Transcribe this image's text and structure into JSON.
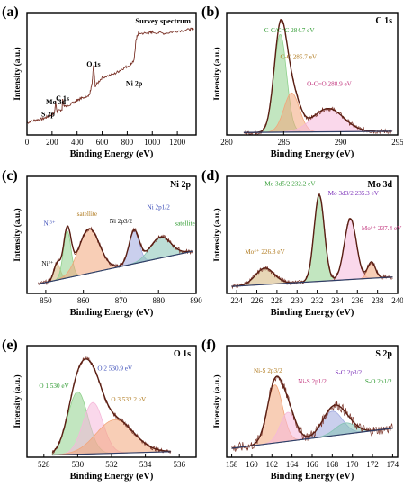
{
  "figure": {
    "background": "#ffffff",
    "colors": {
      "axis": "#000000",
      "raw": "#7a3328",
      "envelope": "#5a1f14",
      "background_line": "#2e3d66",
      "green": "#8fd18c",
      "orange": "#f2a67a",
      "pink": "#f5b8da",
      "tan": "#d4b57a",
      "blue": "#9fa7df",
      "teal": "#85c2b4",
      "red_arrow": "#d23a2a",
      "green_label": "#2e9a30",
      "orange_label": "#b07a1e",
      "pink_label": "#c0307a",
      "blue_label": "#3a4cb8",
      "purple_label": "#7a2fb8"
    }
  },
  "chart_data": [
    {
      "panel": "(a)",
      "type": "line",
      "title": "Survey spectrum",
      "xlabel": "Binding Energy (eV)",
      "ylabel": "Intensity (a.u.)",
      "xlim": [
        0,
        1350
      ],
      "ylim": [
        0,
        100
      ],
      "xticks": [
        "0",
        "200",
        "400",
        "600",
        "800",
        "1000",
        "1200"
      ],
      "series": [
        {
          "x": [
            0,
            60,
            120,
            170,
            220,
            228,
            240,
            280,
            284,
            300,
            380,
            400,
            440,
            500,
            520,
            531,
            545,
            600,
            700,
            760,
            820,
            855,
            870,
            890,
            960,
            1000,
            1100,
            1200,
            1300,
            1330
          ],
          "y": [
            10,
            12,
            13,
            15,
            18,
            27,
            19,
            21,
            29,
            23,
            27,
            29,
            30,
            33,
            42,
            57,
            40,
            47,
            50,
            54,
            57,
            61,
            78,
            83,
            83,
            84,
            83,
            85,
            86,
            87
          ]
        }
      ],
      "annotations": [
        {
          "text": "S 2p",
          "x": 168,
          "y": 15
        },
        {
          "text": "Mo 3d",
          "x": 230,
          "y": 25
        },
        {
          "text": "C 1s",
          "x": 284,
          "y": 28
        },
        {
          "text": "O 1s",
          "x": 531,
          "y": 56
        },
        {
          "text": "Ni 2p",
          "x": 855,
          "y": 40
        }
      ]
    },
    {
      "panel": "(b)",
      "type": "area",
      "title": "C 1s",
      "xlabel": "Binding Energy (eV)",
      "ylabel": "Intensity (a.u.)",
      "xlim": [
        280,
        295
      ],
      "ylim": [
        0,
        100
      ],
      "xticks": [
        "280",
        "285",
        "290",
        "295"
      ],
      "peaks": [
        {
          "label": "C-C/C=C 284.7 eV",
          "center": 284.7,
          "height": 80,
          "fwhm": 1.3,
          "color": "green"
        },
        {
          "label": "C-O 285.7 eV",
          "center": 285.7,
          "height": 32,
          "fwhm": 1.6,
          "color": "orange"
        },
        {
          "label": "O-C=O 288.9 eV",
          "center": 288.9,
          "height": 19,
          "fwhm": 3.2,
          "color": "pink"
        }
      ],
      "background": {
        "x": [
          281.5,
          294.5
        ],
        "y": [
          2,
          3
        ]
      },
      "raw_range": [
        281.5,
        294.5
      ],
      "annotations": [
        {
          "text": "C-C/C=C 284.7 eV",
          "x": 285.5,
          "y": 84,
          "color": "green_label"
        },
        {
          "text": "C-O 285.7 eV",
          "x": 286.3,
          "y": 62,
          "color": "orange_label"
        },
        {
          "text": "O-C=O 288.9 eV",
          "x": 289.0,
          "y": 40,
          "color": "pink_label"
        }
      ]
    },
    {
      "panel": "(c)",
      "type": "area",
      "title": "Ni 2p",
      "xlabel": "Binding Energy (eV)",
      "ylabel": "Intensity (a.u.)",
      "xlim": [
        845,
        890
      ],
      "ylim": [
        0,
        100
      ],
      "xticks": [
        "850",
        "860",
        "870",
        "880",
        "890"
      ],
      "peaks": [
        {
          "label": "Ni²⁺",
          "center": 853.0,
          "height": 14,
          "fwhm": 2.0,
          "color": "tan"
        },
        {
          "label": "Ni³⁺",
          "center": 855.7,
          "height": 40,
          "fwhm": 2.4,
          "color": "green"
        },
        {
          "label": "satellite",
          "center": 861.5,
          "height": 38,
          "fwhm": 6.5,
          "color": "orange"
        },
        {
          "label": "Ni 2p1/2",
          "center": 873.5,
          "height": 28,
          "fwhm": 3.2,
          "color": "blue"
        },
        {
          "label": "satellite",
          "center": 880.5,
          "height": 18,
          "fwhm": 6.5,
          "color": "teal"
        }
      ],
      "background": {
        "x": [
          848,
          889
        ],
        "y": [
          8,
          36
        ]
      },
      "raw_range": [
        848,
        889
      ],
      "annotations": [
        {
          "text": "Ni³⁺",
          "x": 851,
          "y": 58,
          "color": "blue_label"
        },
        {
          "text": "satellite",
          "x": 861,
          "y": 66,
          "color": "orange_label"
        },
        {
          "text": "Ni 2p3/2",
          "x": 870,
          "y": 60
        },
        {
          "text": "Ni 2p1/2",
          "x": 880,
          "y": 72,
          "color": "blue_label"
        },
        {
          "text": "satellite",
          "x": 887,
          "y": 58,
          "color": "green_label"
        },
        {
          "text": "Ni²⁺",
          "x": 850.5,
          "y": 24
        }
      ]
    },
    {
      "panel": "(d)",
      "type": "area",
      "title": "Mo 3d",
      "xlabel": "Binding Energy (eV)",
      "ylabel": "Intensity (a.u.)",
      "xlim": [
        223,
        240
      ],
      "ylim": [
        0,
        100
      ],
      "xticks": [
        "224",
        "226",
        "228",
        "230",
        "232",
        "234",
        "236",
        "238",
        "240"
      ],
      "peaks": [
        {
          "label": "Mo⁴⁺ 226.8 eV",
          "center": 226.8,
          "height": 14,
          "fwhm": 2.2,
          "color": "tan"
        },
        {
          "label": "Mo 3d5/2 232.2 eV",
          "center": 232.2,
          "height": 74,
          "fwhm": 1.2,
          "color": "green"
        },
        {
          "label": "Mo 3d3/2 235.3 eV",
          "center": 235.3,
          "height": 52,
          "fwhm": 1.4,
          "color": "pink"
        },
        {
          "label": "Mo⁶⁺ 237.4 eV",
          "center": 237.4,
          "height": 14,
          "fwhm": 0.9,
          "color": "orange"
        }
      ],
      "background": {
        "x": [
          223.5,
          239.5
        ],
        "y": [
          6,
          14
        ]
      },
      "raw_range": [
        223.5,
        239.5
      ],
      "annotations": [
        {
          "text": "Mo 3d5/2 232.2 eV",
          "x": 229.3,
          "y": 92,
          "color": "green_label"
        },
        {
          "text": "Mo 3d3/2 235.3 eV",
          "x": 235.6,
          "y": 84,
          "color": "purple_label"
        },
        {
          "text": "Mo⁶⁺ 237.4 eV",
          "x": 238.4,
          "y": 54,
          "color": "pink_label"
        },
        {
          "text": "Mo⁴⁺ 226.8 eV",
          "x": 226.8,
          "y": 34,
          "color": "orange_label"
        }
      ]
    },
    {
      "panel": "(e)",
      "type": "area",
      "title": "O 1s",
      "xlabel": "Binding Energy (eV)",
      "ylabel": "Intensity (a.u.)",
      "xlim": [
        527,
        537
      ],
      "ylim": [
        0,
        100
      ],
      "xticks": [
        "528",
        "530",
        "532",
        "534",
        "536"
      ],
      "peaks": [
        {
          "label": "O 1 530 eV",
          "center": 530.0,
          "height": 56,
          "fwhm": 1.4,
          "color": "green"
        },
        {
          "label": "O 2 530.9 eV",
          "center": 530.9,
          "height": 46,
          "fwhm": 1.4,
          "color": "pink"
        },
        {
          "label": "O 3 532.2 eV",
          "center": 532.2,
          "height": 30,
          "fwhm": 2.6,
          "color": "orange"
        }
      ],
      "background": {
        "x": [
          528.5,
          535.5
        ],
        "y": [
          2,
          5
        ]
      },
      "raw_range": [
        528.5,
        535.5
      ],
      "annotations": [
        {
          "text": "O 1 530 eV",
          "x": 528.6,
          "y": 62,
          "color": "green_label"
        },
        {
          "text": "O 2 530.9 eV",
          "x": 532.2,
          "y": 78,
          "color": "blue_label"
        },
        {
          "text": "O 3 532.2 eV",
          "x": 533.0,
          "y": 50,
          "color": "orange_label"
        }
      ]
    },
    {
      "panel": "(f)",
      "type": "area",
      "title": "S 2p",
      "xlabel": "Binding Energy (eV)",
      "ylabel": "Intensity (a.u.)",
      "xlim": [
        157.5,
        174.5
      ],
      "ylim": [
        0,
        100
      ],
      "xticks": [
        "158",
        "160",
        "162",
        "164",
        "166",
        "168",
        "170",
        "172",
        "174"
      ],
      "peaks": [
        {
          "label": "Ni-S 2p3/2",
          "center": 162.3,
          "height": 52,
          "fwhm": 1.8,
          "color": "orange"
        },
        {
          "label": "Ni-S 2p1/2",
          "center": 163.6,
          "height": 26,
          "fwhm": 1.8,
          "color": "pink"
        },
        {
          "label": "S-O 2p3/2",
          "center": 168.0,
          "height": 22,
          "fwhm": 2.4,
          "color": "blue"
        },
        {
          "label": "S-O 2p1/2",
          "center": 169.3,
          "height": 10,
          "fwhm": 2.4,
          "color": "teal"
        }
      ],
      "background": {
        "x": [
          158,
          174
        ],
        "y": [
          8,
          26
        ]
      },
      "raw_range": [
        158,
        174
      ],
      "annotations": [
        {
          "text": "Ni-S 2p3/2",
          "x": 161.6,
          "y": 76,
          "color": "orange_label"
        },
        {
          "text": "Ni-S 2p1/2",
          "x": 166.0,
          "y": 66,
          "color": "pink_label"
        },
        {
          "text": "S-O 2p3/2",
          "x": 169.6,
          "y": 74,
          "color": "purple_label"
        },
        {
          "text": "S-O 2p1/2",
          "x": 172.6,
          "y": 66,
          "color": "green_label"
        }
      ]
    }
  ]
}
